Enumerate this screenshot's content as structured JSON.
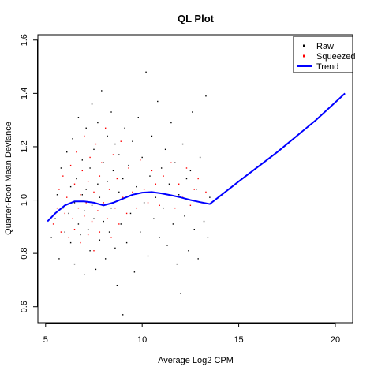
{
  "chart_data": {
    "type": "scatter",
    "title": "QL Plot",
    "xlabel": "Average Log2 CPM",
    "ylabel": "Quarter-Root Mean Deviance",
    "xlim": [
      4.6,
      20.9
    ],
    "ylim": [
      0.54,
      1.62
    ],
    "x_ticks": [
      "5",
      "10",
      "15",
      "20"
    ],
    "x_tick_values": [
      5,
      10,
      15,
      20
    ],
    "y_ticks": [
      "0.6",
      "0.8",
      "1.0",
      "1.2",
      "1.4",
      "1.6"
    ],
    "y_tick_values": [
      0.6,
      0.8,
      1.0,
      1.2,
      1.4,
      1.6
    ],
    "legend": {
      "position": "top-right",
      "entries": [
        {
          "label": "Raw",
          "type": "point",
          "color": "#000000"
        },
        {
          "label": "Squeezed",
          "type": "point",
          "color": "#ff0000"
        },
        {
          "label": "Trend",
          "type": "line",
          "color": "#0000ff"
        }
      ]
    },
    "series": [
      {
        "name": "Raw",
        "color": "#000000",
        "description_density": "dense cloud of raw gene-wise deviances",
        "points": [
          [
            5.3,
            0.86
          ],
          [
            5.5,
            0.93
          ],
          [
            5.6,
            1.02
          ],
          [
            5.7,
            0.78
          ],
          [
            5.8,
            1.12
          ],
          [
            5.9,
            0.97
          ],
          [
            6.0,
            0.88
          ],
          [
            6.1,
            1.18
          ],
          [
            6.2,
            0.95
          ],
          [
            6.3,
            1.05
          ],
          [
            6.3,
            0.84
          ],
          [
            6.4,
            1.23
          ],
          [
            6.5,
            0.99
          ],
          [
            6.5,
            0.76
          ],
          [
            6.6,
            1.08
          ],
          [
            6.7,
            0.91
          ],
          [
            6.7,
            1.31
          ],
          [
            6.8,
            0.87
          ],
          [
            6.9,
            1.02
          ],
          [
            6.9,
            1.15
          ],
          [
            7.0,
            0.72
          ],
          [
            7.0,
            0.96
          ],
          [
            7.1,
            1.27
          ],
          [
            7.1,
            1.04
          ],
          [
            7.2,
            0.89
          ],
          [
            7.3,
            1.12
          ],
          [
            7.3,
            0.81
          ],
          [
            7.4,
            1.36
          ],
          [
            7.4,
            0.98
          ],
          [
            7.5,
            1.19
          ],
          [
            7.5,
            0.93
          ],
          [
            7.6,
            0.74
          ],
          [
            7.7,
            1.06
          ],
          [
            7.7,
            1.29
          ],
          [
            7.8,
            0.85
          ],
          [
            7.8,
            1.01
          ],
          [
            7.9,
            1.41
          ],
          [
            8.0,
            0.92
          ],
          [
            8.0,
            1.14
          ],
          [
            8.1,
            0.78
          ],
          [
            8.2,
            1.07
          ],
          [
            8.2,
            1.24
          ],
          [
            8.3,
            0.88
          ],
          [
            8.4,
            1.33
          ],
          [
            8.4,
            0.97
          ],
          [
            8.5,
            1.11
          ],
          [
            8.6,
            0.82
          ],
          [
            8.6,
            1.21
          ],
          [
            8.7,
            0.68
          ],
          [
            8.8,
            1.03
          ],
          [
            8.8,
            1.17
          ],
          [
            8.9,
            0.91
          ],
          [
            9.0,
            0.57
          ],
          [
            9.0,
            1.08
          ],
          [
            9.1,
            1.27
          ],
          [
            9.2,
            0.84
          ],
          [
            9.3,
            1.13
          ],
          [
            9.4,
            0.95
          ],
          [
            9.5,
            1.22
          ],
          [
            9.6,
            0.73
          ],
          [
            9.7,
            1.05
          ],
          [
            9.8,
            1.31
          ],
          [
            9.9,
            0.88
          ],
          [
            10.0,
            1.16
          ],
          [
            10.1,
            0.99
          ],
          [
            10.2,
            1.48
          ],
          [
            10.3,
            0.79
          ],
          [
            10.4,
            1.09
          ],
          [
            10.5,
            1.24
          ],
          [
            10.6,
            0.93
          ],
          [
            10.7,
            1.01
          ],
          [
            10.8,
            1.37
          ],
          [
            10.9,
            0.86
          ],
          [
            11.0,
            1.12
          ],
          [
            11.1,
            0.97
          ],
          [
            11.2,
            1.19
          ],
          [
            11.3,
            0.83
          ],
          [
            11.4,
            1.06
          ],
          [
            11.5,
            1.29
          ],
          [
            11.6,
            0.91
          ],
          [
            11.7,
            1.14
          ],
          [
            11.8,
            0.76
          ],
          [
            11.9,
            1.02
          ],
          [
            12.0,
            0.65
          ],
          [
            12.1,
            1.21
          ],
          [
            12.2,
            0.94
          ],
          [
            12.3,
            1.08
          ],
          [
            12.4,
            0.81
          ],
          [
            12.5,
            1.11
          ],
          [
            12.6,
            1.33
          ],
          [
            12.7,
            0.89
          ],
          [
            12.8,
            1.04
          ],
          [
            12.9,
            0.78
          ],
          [
            13.0,
            1.16
          ],
          [
            13.2,
            0.92
          ],
          [
            13.3,
            1.39
          ],
          [
            13.4,
            0.86
          ],
          [
            13.5,
            1.01
          ]
        ]
      },
      {
        "name": "Squeezed",
        "color": "#ff0000",
        "description_density": "dense cloud of squeezed deviances, concentrated near the trend",
        "points": [
          [
            5.4,
            0.91
          ],
          [
            5.6,
            0.97
          ],
          [
            5.7,
            1.04
          ],
          [
            5.8,
            0.88
          ],
          [
            5.9,
            1.09
          ],
          [
            6.0,
            0.95
          ],
          [
            6.1,
            1.01
          ],
          [
            6.2,
            0.86
          ],
          [
            6.3,
            1.13
          ],
          [
            6.4,
            0.93
          ],
          [
            6.5,
            1.06
          ],
          [
            6.5,
            0.89
          ],
          [
            6.6,
            1.18
          ],
          [
            6.7,
            0.97
          ],
          [
            6.8,
            1.02
          ],
          [
            6.8,
            0.84
          ],
          [
            6.9,
            1.11
          ],
          [
            7.0,
            0.94
          ],
          [
            7.0,
            1.24
          ],
          [
            7.1,
            0.99
          ],
          [
            7.2,
            0.87
          ],
          [
            7.2,
            1.07
          ],
          [
            7.3,
            1.16
          ],
          [
            7.4,
            0.92
          ],
          [
            7.5,
            1.03
          ],
          [
            7.5,
            0.81
          ],
          [
            7.6,
            1.21
          ],
          [
            7.7,
            0.96
          ],
          [
            7.8,
            1.09
          ],
          [
            7.8,
            0.88
          ],
          [
            7.9,
            1.14
          ],
          [
            8.0,
            0.99
          ],
          [
            8.1,
            1.27
          ],
          [
            8.2,
            0.93
          ],
          [
            8.3,
            1.04
          ],
          [
            8.4,
            0.86
          ],
          [
            8.5,
            1.17
          ],
          [
            8.6,
            0.97
          ],
          [
            8.7,
            1.08
          ],
          [
            8.8,
            0.91
          ],
          [
            8.9,
            1.22
          ],
          [
            9.0,
            1.01
          ],
          [
            9.2,
            0.95
          ],
          [
            9.3,
            1.12
          ],
          [
            9.5,
            1.03
          ],
          [
            9.7,
            0.97
          ],
          [
            9.9,
            1.15
          ],
          [
            10.1,
            1.04
          ],
          [
            10.3,
            0.99
          ],
          [
            10.5,
            1.11
          ],
          [
            10.7,
            1.06
          ],
          [
            10.9,
            0.98
          ],
          [
            11.1,
            1.09
          ],
          [
            11.3,
            1.02
          ],
          [
            11.5,
            1.14
          ],
          [
            11.7,
            0.97
          ],
          [
            11.9,
            1.06
          ],
          [
            12.1,
            1.01
          ],
          [
            12.3,
            1.12
          ],
          [
            12.5,
            0.98
          ],
          [
            12.7,
            1.04
          ],
          [
            12.9,
            1.08
          ],
          [
            13.1,
            0.99
          ],
          [
            13.3,
            1.03
          ]
        ]
      },
      {
        "name": "Trend",
        "color": "#0000ff",
        "type": "line",
        "points": [
          [
            5.1,
            0.92
          ],
          [
            5.5,
            0.95
          ],
          [
            6.0,
            0.98
          ],
          [
            6.5,
            0.995
          ],
          [
            7.0,
            0.995
          ],
          [
            7.5,
            0.99
          ],
          [
            8.0,
            0.98
          ],
          [
            8.5,
            0.99
          ],
          [
            9.0,
            1.005
          ],
          [
            9.5,
            1.02
          ],
          [
            10.0,
            1.028
          ],
          [
            10.5,
            1.03
          ],
          [
            11.0,
            1.025
          ],
          [
            11.5,
            1.018
          ],
          [
            12.0,
            1.01
          ],
          [
            12.5,
            1.0
          ],
          [
            13.0,
            0.992
          ],
          [
            13.5,
            0.985
          ],
          [
            15.0,
            1.07
          ],
          [
            17.0,
            1.18
          ],
          [
            19.0,
            1.3
          ],
          [
            20.5,
            1.4
          ]
        ]
      }
    ]
  }
}
